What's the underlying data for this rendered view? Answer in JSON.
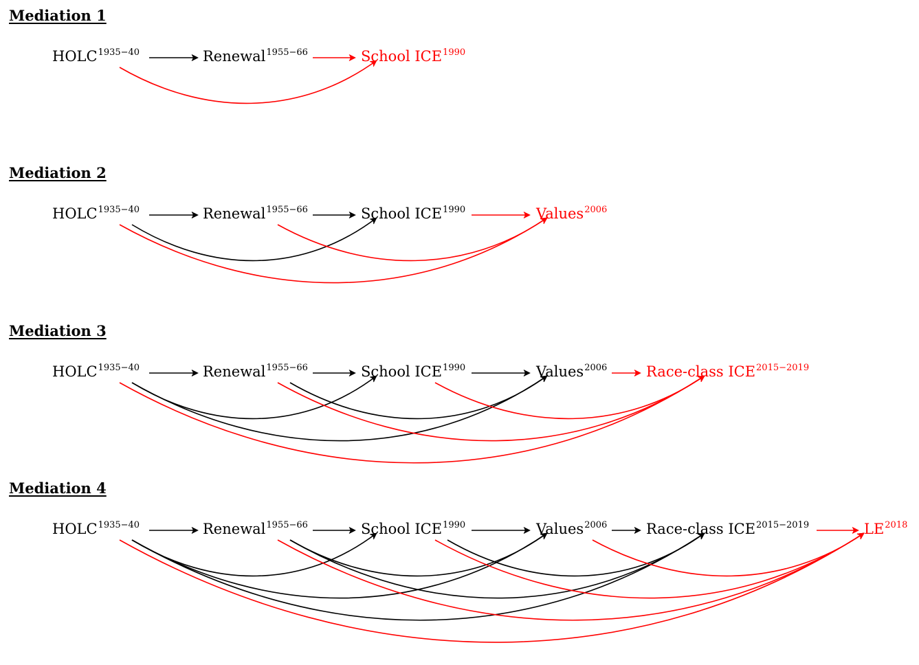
{
  "colors": {
    "highlight": "#ff0000",
    "default": "#000000"
  },
  "panels": [
    {
      "title": "Mediation 1",
      "nodes": [
        {
          "label": "HOLC",
          "sup": "1935−40",
          "highlight": false
        },
        {
          "label": "Renewal",
          "sup": "1955−66",
          "highlight": false
        },
        {
          "label": "School ICE",
          "sup": "1990",
          "highlight": true
        }
      ]
    },
    {
      "title": "Mediation 2",
      "nodes": [
        {
          "label": "HOLC",
          "sup": "1935−40",
          "highlight": false
        },
        {
          "label": "Renewal",
          "sup": "1955−66",
          "highlight": false
        },
        {
          "label": "School ICE",
          "sup": "1990",
          "highlight": false
        },
        {
          "label": "Values",
          "sup": "2006",
          "highlight": true
        }
      ]
    },
    {
      "title": "Mediation 3",
      "nodes": [
        {
          "label": "HOLC",
          "sup": "1935−40",
          "highlight": false
        },
        {
          "label": "Renewal",
          "sup": "1955−66",
          "highlight": false
        },
        {
          "label": "School ICE",
          "sup": "1990",
          "highlight": false
        },
        {
          "label": "Values",
          "sup": "2006",
          "highlight": false
        },
        {
          "label": "Race-class ICE",
          "sup": "2015−2019",
          "highlight": true
        }
      ]
    },
    {
      "title": "Mediation 4",
      "nodes": [
        {
          "label": "HOLC",
          "sup": "1935−40",
          "highlight": false
        },
        {
          "label": "Renewal",
          "sup": "1955−66",
          "highlight": false
        },
        {
          "label": "School ICE",
          "sup": "1990",
          "highlight": false
        },
        {
          "label": "Values",
          "sup": "2006",
          "highlight": false
        },
        {
          "label": "Race-class ICE",
          "sup": "2015−2019",
          "highlight": false
        },
        {
          "label": "LE",
          "sup": "2018",
          "highlight": true
        }
      ]
    }
  ]
}
